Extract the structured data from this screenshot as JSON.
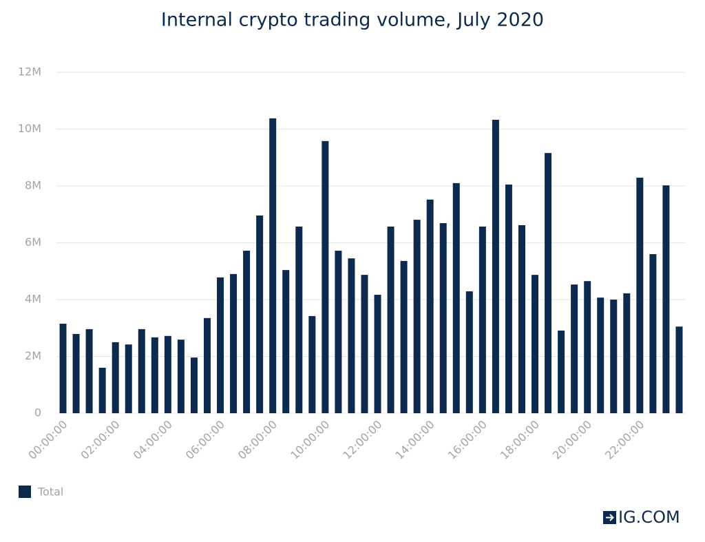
{
  "chart_data": {
    "type": "bar",
    "title": "Internal crypto trading volume, July 2020",
    "categories": [
      "00:00:00",
      null,
      null,
      null,
      "02:00:00",
      null,
      null,
      null,
      "04:00:00",
      null,
      null,
      null,
      "06:00:00",
      null,
      null,
      null,
      "08:00:00",
      null,
      null,
      null,
      "10:00:00",
      null,
      null,
      null,
      "12:00:00",
      null,
      null,
      null,
      "14:00:00",
      null,
      null,
      null,
      "16:00:00",
      null,
      null,
      null,
      "18:00:00",
      null,
      null,
      null,
      "20:00:00",
      null,
      null,
      null,
      "22:00:00",
      null,
      null,
      null
    ],
    "series": [
      {
        "name": "Total",
        "color": "#0c2a4d",
        "values": [
          3150000,
          2790000,
          2960000,
          1600000,
          2500000,
          2420000,
          2960000,
          2670000,
          2720000,
          2590000,
          1960000,
          3350000,
          4780000,
          4900000,
          5720000,
          6960000,
          10380000,
          5040000,
          6570000,
          3420000,
          9580000,
          5720000,
          5450000,
          4870000,
          4170000,
          6570000,
          5360000,
          6810000,
          7520000,
          6690000,
          8100000,
          4290000,
          6570000,
          10330000,
          8050000,
          6620000,
          4870000,
          9160000,
          2910000,
          4530000,
          4650000,
          4070000,
          4000000,
          4220000,
          8290000,
          5600000,
          8020000,
          3050000
        ]
      }
    ],
    "ylim": [
      0,
      12000000
    ],
    "yticks": [
      0,
      {
        "value": 2000000,
        "label": "2M"
      },
      {
        "value": 4000000,
        "label": "4M"
      },
      {
        "value": 6000000,
        "label": "6M"
      },
      {
        "value": 8000000,
        "label": "8M"
      },
      {
        "value": 10000000,
        "label": "10M"
      },
      {
        "value": 12000000,
        "label": "12M"
      }
    ],
    "grid": true,
    "legend": "bottom-left",
    "brand": "IG.COM"
  }
}
